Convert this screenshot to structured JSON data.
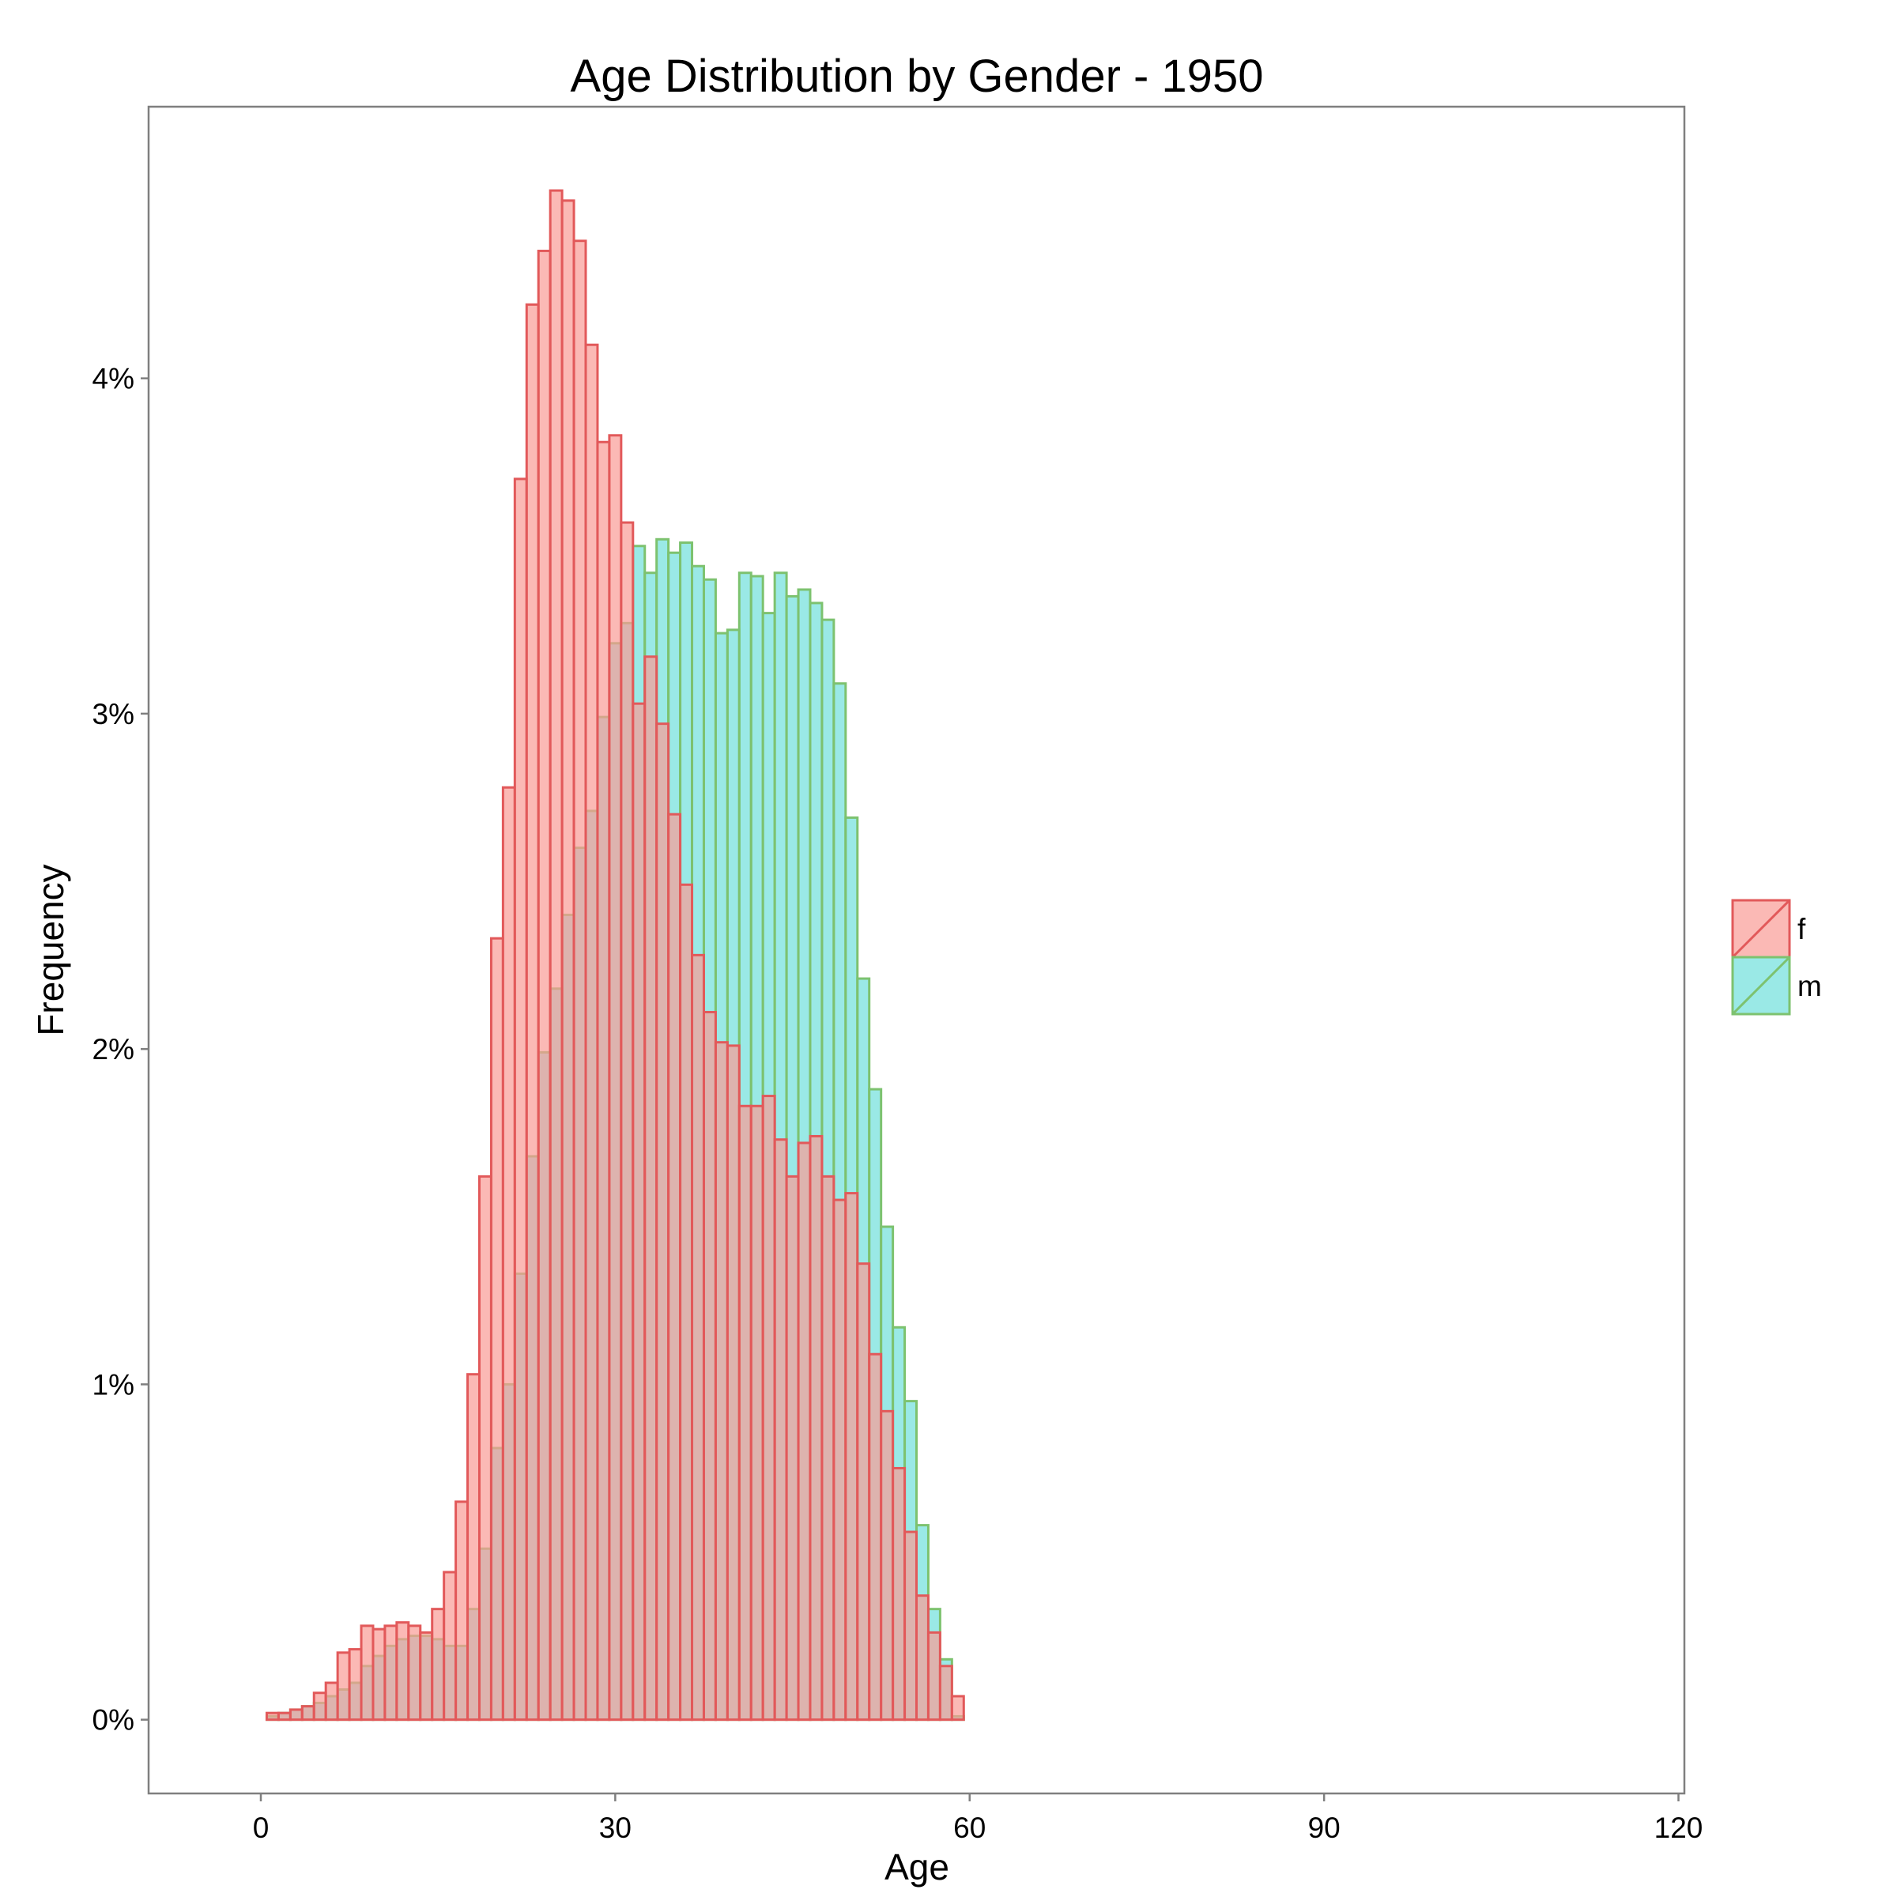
{
  "chart_data": {
    "type": "bar",
    "title": "Age Distribution by Gender - 1950",
    "xlabel": "Age",
    "ylabel": "Frequency",
    "xlim": [
      -9.5,
      120.5
    ],
    "ylim": [
      -0.0022,
      0.0481
    ],
    "x_ticks": [
      0,
      30,
      60,
      90,
      120
    ],
    "x_tick_labels": [
      "0",
      "30",
      "60",
      "90",
      "120"
    ],
    "y_ticks": [
      0,
      0.01,
      0.02,
      0.03,
      0.04
    ],
    "y_tick_labels": [
      "0%",
      "1%",
      "2%",
      "3%",
      "4%"
    ],
    "grid": false,
    "legend_position": "right",
    "bin_start": 0.5,
    "bin_width": 1,
    "bins": [
      "1",
      "2",
      "3",
      "4",
      "5",
      "6",
      "7",
      "8",
      "9",
      "10",
      "11",
      "12",
      "13",
      "14",
      "15",
      "16",
      "17",
      "18",
      "19",
      "20",
      "21",
      "22",
      "23",
      "24",
      "25",
      "26",
      "27",
      "28",
      "29",
      "30",
      "31",
      "32",
      "33",
      "34",
      "35",
      "36",
      "37",
      "38",
      "39",
      "40",
      "41",
      "42",
      "43",
      "44",
      "45",
      "46",
      "47",
      "48",
      "49",
      "50",
      "51",
      "52",
      "53",
      "54",
      "55",
      "56",
      "57",
      "58",
      "59"
    ],
    "series": [
      {
        "name": "m",
        "fill": "#6fe0dc",
        "stroke": "#7dc26f",
        "values": [
          0.0001,
          0.0002,
          0.0003,
          0.0004,
          0.0005,
          0.0007,
          0.0009,
          0.0011,
          0.0016,
          0.0019,
          0.0022,
          0.0024,
          0.0025,
          0.0025,
          0.0024,
          0.0022,
          0.0022,
          0.0033,
          0.0051,
          0.0081,
          0.01,
          0.0133,
          0.0168,
          0.0199,
          0.0218,
          0.024,
          0.026,
          0.0271,
          0.0299,
          0.0321,
          0.0327,
          0.035,
          0.0342,
          0.0352,
          0.0348,
          0.0351,
          0.0344,
          0.034,
          0.0324,
          0.0325,
          0.0342,
          0.0341,
          0.033,
          0.0342,
          0.0335,
          0.0337,
          0.0333,
          0.0328,
          0.0309,
          0.0269,
          0.0221,
          0.0188,
          0.0147,
          0.0117,
          0.0095,
          0.0058,
          0.0033,
          0.0018,
          0.0001
        ]
      },
      {
        "name": "f",
        "fill": "#f99b96",
        "stroke": "#e2595a",
        "values": [
          0.0002,
          0.0002,
          0.0003,
          0.0004,
          0.0008,
          0.0011,
          0.002,
          0.0021,
          0.0028,
          0.0027,
          0.0028,
          0.0029,
          0.0028,
          0.0026,
          0.0033,
          0.0044,
          0.0065,
          0.0103,
          0.0162,
          0.0233,
          0.0278,
          0.037,
          0.0422,
          0.0438,
          0.0456,
          0.0453,
          0.0441,
          0.041,
          0.0381,
          0.0383,
          0.0357,
          0.0303,
          0.0317,
          0.0297,
          0.027,
          0.0249,
          0.0228,
          0.0211,
          0.0202,
          0.0201,
          0.0183,
          0.0183,
          0.0186,
          0.0173,
          0.0162,
          0.0172,
          0.0174,
          0.0162,
          0.0155,
          0.0157,
          0.0136,
          0.0109,
          0.0092,
          0.0075,
          0.0056,
          0.0037,
          0.0026,
          0.0016,
          0.0007
        ]
      }
    ],
    "legend": [
      {
        "label": "f",
        "fill": "#f99b96",
        "stroke": "#e2595a"
      },
      {
        "label": "m",
        "fill": "#6fe0dc",
        "stroke": "#7dc26f"
      }
    ]
  }
}
